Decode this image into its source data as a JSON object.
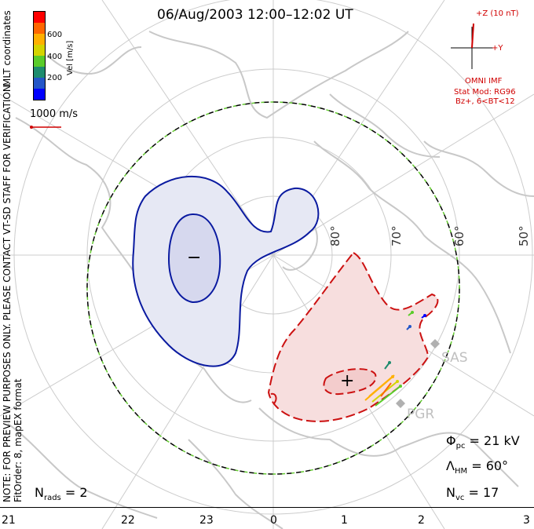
{
  "title": "06/Aug/2003 12:00–12:02 UT",
  "side_note": {
    "line1": "NOTE: FOR PREVIEW PURPOSES ONLY. PLEASE CONTACT VT-SD STAFF FOR VERIFICATION.",
    "line2": "FitOrder: 8, mapEX format"
  },
  "colorbar": {
    "label": "Vel [m/s]",
    "coords_label": "MLT coordinates",
    "ticks": [
      "600",
      "400",
      "200"
    ],
    "colors": [
      "#ff0000",
      "#ff6600",
      "#ffb000",
      "#d4d400",
      "#5acc2a",
      "#1e8c6e",
      "#2456c8",
      "#0000ff"
    ]
  },
  "vector_scale": "1000 m/s",
  "imf": {
    "z_label": "+Z (10 nT)",
    "y_label": "+Y",
    "source": "OMNI IMF",
    "model": "Stat Mod: RG96",
    "condition": "Bz+, 6<BT<12"
  },
  "latitude_labels": [
    "80°",
    "70°",
    "60°",
    "50°"
  ],
  "radars": [
    "SAS",
    "PGR"
  ],
  "markers": {
    "min": "−",
    "max": "+"
  },
  "stats": {
    "phi_pc": {
      "symbol": "Φ",
      "sub": "pc",
      "value": "= 21 kV"
    },
    "lambda_hm": {
      "symbol": "Λ",
      "sub": "HM",
      "value": "= 60°"
    },
    "n_vc": {
      "symbol": "N",
      "sub": "vc",
      "value": "= 17"
    },
    "n_rads": {
      "symbol": "N",
      "sub": "rads",
      "value": "= 2"
    }
  },
  "mlt_axis": [
    "21",
    "22",
    "23",
    "0",
    "1",
    "2",
    "3"
  ],
  "colors": {
    "negative_cell_fill": "#e6e8f4",
    "negative_cell_line": "#0a1aa0",
    "positive_cell_fill": "#f7dede",
    "positive_cell_line": "#cc1111",
    "hm_boundary": "#66cc33",
    "coastline": "#c8c8c8",
    "grid": "#cccccc"
  }
}
